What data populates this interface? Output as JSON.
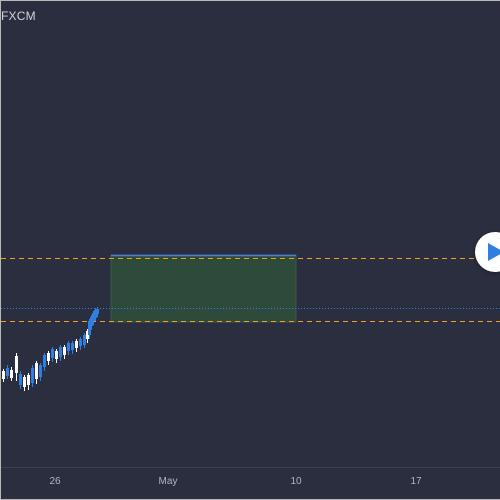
{
  "header": {
    "symbol": "FXCM"
  },
  "colors": {
    "background": "#2a2e3f",
    "up_candle": "#2f7fe0",
    "down_candle": "#ffffff",
    "stop_line": "#f0a020",
    "price_line": "#2f7fe0",
    "target_zone": "#2d4a3b",
    "entry_line": "#4a7fd0",
    "play_icon": "#2f7fe0"
  },
  "time_axis": {
    "labels": [
      "26",
      "May",
      "10",
      "17"
    ]
  },
  "play_button": {
    "icon": "play-icon"
  },
  "chart_data": {
    "type": "candlestick",
    "note_levels": {
      "upper_dashed_level": "upper target level",
      "lower_dashed_level": "lower stop level"
    },
    "candles": [
      {
        "dir": "down"
      },
      {
        "dir": "up"
      },
      {
        "dir": "down"
      },
      {
        "dir": "down"
      },
      {
        "dir": "up"
      },
      {
        "dir": "down"
      },
      {
        "dir": "down"
      },
      {
        "dir": "up"
      },
      {
        "dir": "down"
      },
      {
        "dir": "up"
      },
      {
        "dir": "up"
      },
      {
        "dir": "down"
      },
      {
        "dir": "up"
      },
      {
        "dir": "down"
      },
      {
        "dir": "up"
      },
      {
        "dir": "down"
      },
      {
        "dir": "up"
      },
      {
        "dir": "up"
      },
      {
        "dir": "down"
      },
      {
        "dir": "up"
      },
      {
        "dir": "up"
      },
      {
        "dir": "down"
      },
      {
        "dir": "up"
      },
      {
        "dir": "up"
      },
      {
        "dir": "up"
      },
      {
        "dir": "up"
      },
      {
        "dir": "up"
      }
    ]
  }
}
